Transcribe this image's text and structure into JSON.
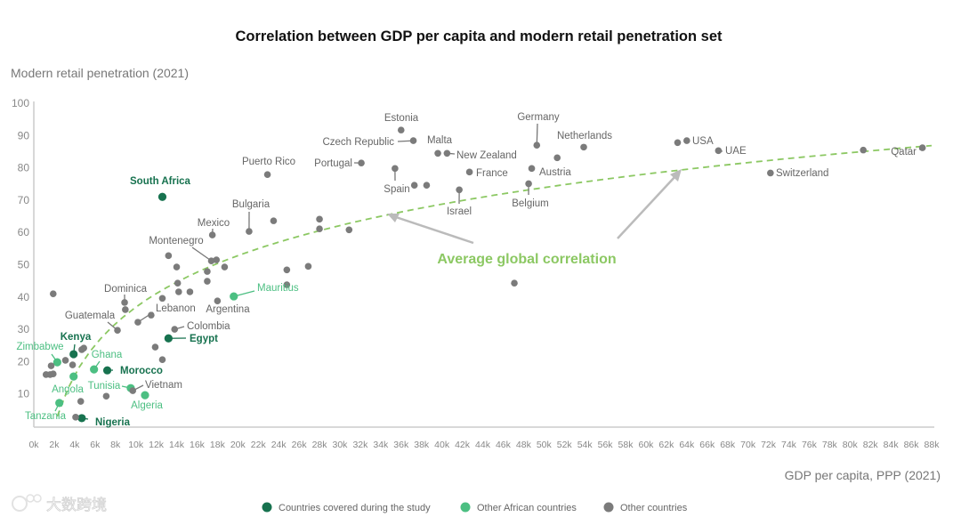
{
  "chart_data": {
    "type": "scatter",
    "title": "Correlation between GDP per capita and modern retail penetration set",
    "ylabel": "Modern retail penetration (2021)",
    "xlabel": "GDP per capita, PPP (2021)",
    "xlim": [
      0,
      88
    ],
    "ylim": [
      0,
      100
    ],
    "x_ticks": [
      "0k",
      "2k",
      "4k",
      "6k",
      "8k",
      "10k",
      "12k",
      "14k",
      "16k",
      "18k",
      "20k",
      "22k",
      "24k",
      "26k",
      "28k",
      "30k",
      "32k",
      "34k",
      "36k",
      "38k",
      "40k",
      "42k",
      "44k",
      "46k",
      "48k",
      "50k",
      "52k",
      "54k",
      "56k",
      "58k",
      "60k",
      "62k",
      "64k",
      "66k",
      "68k",
      "70k",
      "72k",
      "74k",
      "76k",
      "78k",
      "80k",
      "82k",
      "84k",
      "86k",
      "88k"
    ],
    "y_ticks": [
      10,
      20,
      30,
      40,
      50,
      60,
      70,
      80,
      90,
      100
    ],
    "legend": {
      "position": "bottom",
      "entries": [
        {
          "key": "study",
          "label": "Countries covered during the study",
          "color": "#17724f"
        },
        {
          "key": "african",
          "label": "Other African countries",
          "color": "#4cbf82"
        },
        {
          "key": "other",
          "label": "Other countries",
          "color": "#7b7b7b"
        }
      ]
    },
    "annotation": {
      "text": "Average global correlation",
      "color": "#8cc863"
    },
    "trendline": {
      "style": "dashed",
      "color": "#8cc863",
      "formula": "y = -16.1 + 23*ln(x)",
      "x_range": [
        2.3,
        88
      ]
    },
    "points": [
      {
        "name": "South Africa",
        "group": "study",
        "x": 12.6,
        "y": 71
      },
      {
        "name": "Kenya",
        "group": "study",
        "x": 3.9,
        "y": 22.3
      },
      {
        "name": "Morocco",
        "group": "study",
        "x": 7.2,
        "y": 17.3
      },
      {
        "name": "Egypt",
        "group": "study",
        "x": 13.2,
        "y": 27.2
      },
      {
        "name": "Nigeria",
        "group": "study",
        "x": 4.7,
        "y": 2.5
      },
      {
        "name": "Zimbabwe",
        "group": "african",
        "x": 2.3,
        "y": 19.8
      },
      {
        "name": "Ghana",
        "group": "african",
        "x": 5.9,
        "y": 17.6
      },
      {
        "name": "Angola",
        "group": "african",
        "x": 3.9,
        "y": 15.4
      },
      {
        "name": "Tunisia",
        "group": "african",
        "x": 9.5,
        "y": 11.8
      },
      {
        "name": "Algeria",
        "group": "african",
        "x": 10.9,
        "y": 9.6
      },
      {
        "name": "Tanzania",
        "group": "african",
        "x": 2.5,
        "y": 7.2
      },
      {
        "name": "Mauritius",
        "group": "african",
        "x": 19.6,
        "y": 40.2
      },
      {
        "name": "Vietnam",
        "group": "other",
        "x": 9.7,
        "y": 11
      },
      {
        "name": "Colombia",
        "group": "other",
        "x": 13.8,
        "y": 30
      },
      {
        "name": "Lebanon",
        "group": "other",
        "x": 10.2,
        "y": 32.2
      },
      {
        "name": "Guatemala",
        "group": "other",
        "x": 8.2,
        "y": 29.7
      },
      {
        "name": "Dominica",
        "group": "other",
        "x": 8.9,
        "y": 38.3
      },
      {
        "name": "Argentina",
        "group": "other",
        "x": 18,
        "y": 38.8
      },
      {
        "name": "Montenegro",
        "group": "other",
        "x": 17.4,
        "y": 51.2
      },
      {
        "name": "Mexico",
        "group": "other",
        "x": 17.5,
        "y": 59.2
      },
      {
        "name": "Bulgaria",
        "group": "other",
        "x": 21.1,
        "y": 60.3
      },
      {
        "name": "Puerto Rico",
        "group": "other",
        "x": 22.9,
        "y": 77.9
      },
      {
        "name": "Portugal",
        "group": "other",
        "x": 32.1,
        "y": 81.5
      },
      {
        "name": "Czech Republic",
        "group": "other",
        "x": 37.2,
        "y": 88.4
      },
      {
        "name": "Estonia",
        "group": "other",
        "x": 36,
        "y": 91.7
      },
      {
        "name": "Malta",
        "group": "other",
        "x": 39.6,
        "y": 84.5
      },
      {
        "name": "New Zealand",
        "group": "other",
        "x": 40.5,
        "y": 84.5
      },
      {
        "name": "France",
        "group": "other",
        "x": 42.7,
        "y": 78.7
      },
      {
        "name": "Spain",
        "group": "other",
        "x": 35.4,
        "y": 79.8
      },
      {
        "name": "Israel",
        "group": "other",
        "x": 41.7,
        "y": 73.2
      },
      {
        "name": "Belgium",
        "group": "other",
        "x": 48.5,
        "y": 75.1
      },
      {
        "name": "Austria",
        "group": "other",
        "x": 48.8,
        "y": 79.8
      },
      {
        "name": "Germany",
        "group": "other",
        "x": 49.3,
        "y": 87
      },
      {
        "name": "Netherlands",
        "group": "other",
        "x": 53.9,
        "y": 86.4
      },
      {
        "name": "USA",
        "group": "other",
        "x": 64,
        "y": 88.4
      },
      {
        "name": "UAE",
        "group": "other",
        "x": 67.1,
        "y": 85.3
      },
      {
        "name": "Switzerland",
        "group": "other",
        "x": 72.2,
        "y": 78.4
      },
      {
        "name": "Qatar",
        "group": "other",
        "x": 87.1,
        "y": 86.2
      },
      {
        "name": "",
        "group": "other",
        "x": 1.9,
        "y": 41
      },
      {
        "name": "",
        "group": "other",
        "x": 1.6,
        "y": 16
      },
      {
        "name": "",
        "group": "other",
        "x": 1.9,
        "y": 16.2
      },
      {
        "name": "",
        "group": "other",
        "x": 1.2,
        "y": 16
      },
      {
        "name": "",
        "group": "other",
        "x": 1.7,
        "y": 18.7
      },
      {
        "name": "",
        "group": "other",
        "x": 3.1,
        "y": 20.4
      },
      {
        "name": "",
        "group": "other",
        "x": 3.8,
        "y": 19
      },
      {
        "name": "",
        "group": "other",
        "x": 4.7,
        "y": 23.7
      },
      {
        "name": "",
        "group": "other",
        "x": 4.6,
        "y": 7.7
      },
      {
        "name": "",
        "group": "other",
        "x": 4.1,
        "y": 2.8
      },
      {
        "name": "",
        "group": "other",
        "x": 7.1,
        "y": 9.3
      },
      {
        "name": "",
        "group": "other",
        "x": 11.5,
        "y": 34.4
      },
      {
        "name": "",
        "group": "other",
        "x": 11.9,
        "y": 24.5
      },
      {
        "name": "",
        "group": "other",
        "x": 12.6,
        "y": 20.6
      },
      {
        "name": "",
        "group": "other",
        "x": 12.6,
        "y": 39.6
      },
      {
        "name": "",
        "group": "other",
        "x": 13.2,
        "y": 52.8
      },
      {
        "name": "",
        "group": "other",
        "x": 14,
        "y": 49.3
      },
      {
        "name": "",
        "group": "other",
        "x": 14.2,
        "y": 41.6
      },
      {
        "name": "",
        "group": "other",
        "x": 14.1,
        "y": 44.3
      },
      {
        "name": "",
        "group": "other",
        "x": 15.3,
        "y": 41.6
      },
      {
        "name": "",
        "group": "other",
        "x": 17,
        "y": 44.9
      },
      {
        "name": "",
        "group": "other",
        "x": 17,
        "y": 47.9
      },
      {
        "name": "",
        "group": "other",
        "x": 17.9,
        "y": 51.5
      },
      {
        "name": "",
        "group": "other",
        "x": 18.7,
        "y": 49.3
      },
      {
        "name": "",
        "group": "other",
        "x": 23.5,
        "y": 63.6
      },
      {
        "name": "",
        "group": "other",
        "x": 24.8,
        "y": 43.8
      },
      {
        "name": "",
        "group": "other",
        "x": 24.8,
        "y": 48.4
      },
      {
        "name": "",
        "group": "other",
        "x": 26.9,
        "y": 49.5
      },
      {
        "name": "",
        "group": "other",
        "x": 28,
        "y": 64.1
      },
      {
        "name": "",
        "group": "other",
        "x": 28,
        "y": 61.1
      },
      {
        "name": "",
        "group": "other",
        "x": 30.9,
        "y": 60.8
      },
      {
        "name": "",
        "group": "other",
        "x": 37.3,
        "y": 74.6
      },
      {
        "name": "",
        "group": "other",
        "x": 38.5,
        "y": 74.6
      },
      {
        "name": "",
        "group": "other",
        "x": 47.1,
        "y": 44.3
      },
      {
        "name": "",
        "group": "other",
        "x": 51.3,
        "y": 83.1
      },
      {
        "name": "",
        "group": "other",
        "x": 63.1,
        "y": 87.8
      },
      {
        "name": "",
        "group": "other",
        "x": 81.3,
        "y": 85.5
      },
      {
        "name": "",
        "group": "other",
        "x": 8.97,
        "y": 36.1
      },
      {
        "name": "",
        "group": "other",
        "x": 4.9,
        "y": 24.2
      }
    ]
  },
  "watermark": "大数跨境"
}
